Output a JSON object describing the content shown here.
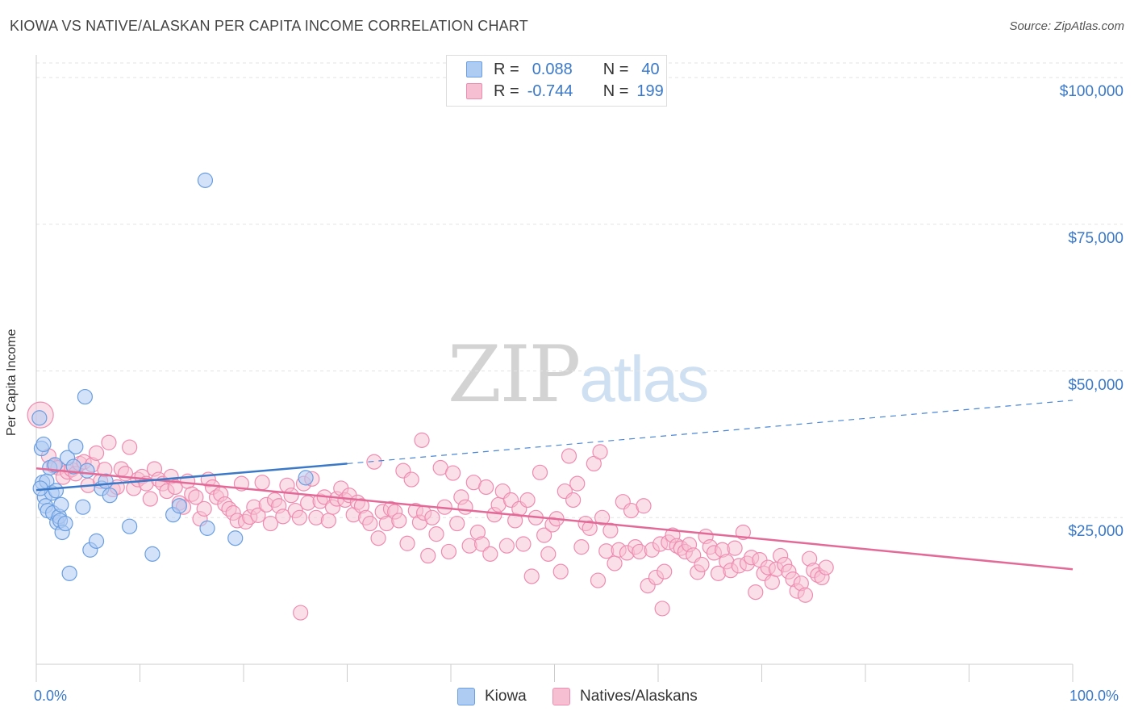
{
  "header": {
    "title": "KIOWA VS NATIVE/ALASKAN PER CAPITA INCOME CORRELATION CHART",
    "source": "Source: ZipAtlas.com"
  },
  "watermark": {
    "zip": "ZIP",
    "atlas": "atlas"
  },
  "stats": {
    "rows": [
      {
        "r_label": "R =",
        "r_value": "0.088",
        "n_label": "N =",
        "n_value": "40",
        "color": "#aecbf2",
        "border": "#6a9ee0"
      },
      {
        "r_label": "R =",
        "r_value": "-0.744",
        "n_label": "N =",
        "n_value": "199",
        "color": "#f7c0d2",
        "border": "#ee8cb0"
      }
    ]
  },
  "legend": {
    "items": [
      {
        "label": "Kiowa",
        "color": "#aecbf2",
        "border": "#6a9ee0"
      },
      {
        "label": "Natives/Alaskans",
        "color": "#f7c0d2",
        "border": "#ee8cb0"
      }
    ]
  },
  "chart_data": {
    "type": "scatter",
    "title": "KIOWA VS NATIVE/ALASKAN PER CAPITA INCOME CORRELATION CHART",
    "xlabel": "",
    "ylabel": "Per Capita Income",
    "x_tick_labels": [
      "0.0%",
      "100.0%"
    ],
    "y_tick_labels": [
      "$100,000",
      "$75,000",
      "$50,000",
      "$25,000"
    ],
    "y_ticks": [
      100000,
      75000,
      50000,
      25000
    ],
    "xlim": [
      0,
      100
    ],
    "ylim": [
      0,
      102500
    ],
    "grid": true,
    "series": [
      {
        "name": "Kiowa",
        "color": "#6a9ee0",
        "fill": "rgba(174,203,242,0.55)",
        "trend": {
          "x0": 0,
          "y0": 29700,
          "x1": 30,
          "y1": 34200,
          "dash_to_x": 100,
          "dash_to_y": 45000
        },
        "points": [
          [
            0.3,
            42000
          ],
          [
            0.5,
            36800
          ],
          [
            0.6,
            31000
          ],
          [
            0.7,
            37500
          ],
          [
            0.8,
            28500
          ],
          [
            0.9,
            27000
          ],
          [
            1.0,
            31200
          ],
          [
            1.1,
            26200
          ],
          [
            1.3,
            33500
          ],
          [
            1.5,
            29200
          ],
          [
            1.6,
            25800
          ],
          [
            1.8,
            34000
          ],
          [
            2.0,
            24200
          ],
          [
            2.2,
            25200
          ],
          [
            2.3,
            24500
          ],
          [
            2.4,
            27200
          ],
          [
            2.5,
            22500
          ],
          [
            2.8,
            24000
          ],
          [
            3.0,
            35200
          ],
          [
            3.2,
            15500
          ],
          [
            3.6,
            33700
          ],
          [
            3.8,
            37100
          ],
          [
            4.5,
            26800
          ],
          [
            4.7,
            45600
          ],
          [
            4.9,
            33000
          ],
          [
            5.2,
            19500
          ],
          [
            5.8,
            21000
          ],
          [
            6.3,
            30000
          ],
          [
            6.7,
            31200
          ],
          [
            7.1,
            28800
          ],
          [
            9.0,
            23500
          ],
          [
            11.2,
            18800
          ],
          [
            13.2,
            25500
          ],
          [
            13.8,
            27000
          ],
          [
            16.3,
            82500
          ],
          [
            16.5,
            23200
          ],
          [
            19.2,
            21500
          ],
          [
            26.0,
            31800
          ],
          [
            1.9,
            29600
          ],
          [
            0.4,
            30000
          ]
        ]
      },
      {
        "name": "Natives/Alaskans",
        "color": "#ee8cb0",
        "fill": "rgba(247,192,210,0.5)",
        "trend": {
          "x0": 0,
          "y0": 33400,
          "x1": 100,
          "y1": 16200
        },
        "points": [
          [
            0.4,
            42500
          ],
          [
            1.2,
            35500
          ],
          [
            1.7,
            33800
          ],
          [
            2.1,
            33500
          ],
          [
            2.6,
            31900
          ],
          [
            3.0,
            32800
          ],
          [
            3.4,
            33200
          ],
          [
            3.8,
            32500
          ],
          [
            4.2,
            34200
          ],
          [
            4.6,
            34500
          ],
          [
            5.0,
            30500
          ],
          [
            5.4,
            34000
          ],
          [
            5.8,
            36000
          ],
          [
            6.2,
            31200
          ],
          [
            6.6,
            33200
          ],
          [
            7.0,
            37800
          ],
          [
            7.4,
            29800
          ],
          [
            7.8,
            30200
          ],
          [
            8.2,
            33300
          ],
          [
            8.6,
            32500
          ],
          [
            9.0,
            37000
          ],
          [
            9.4,
            30000
          ],
          [
            9.8,
            31500
          ],
          [
            10.2,
            32000
          ],
          [
            10.6,
            30800
          ],
          [
            11.0,
            28200
          ],
          [
            11.4,
            33300
          ],
          [
            11.8,
            31500
          ],
          [
            12.2,
            30800
          ],
          [
            12.6,
            29500
          ],
          [
            13.0,
            32000
          ],
          [
            13.4,
            30200
          ],
          [
            13.8,
            27500
          ],
          [
            14.2,
            26800
          ],
          [
            14.6,
            31200
          ],
          [
            15.0,
            29000
          ],
          [
            15.4,
            28500
          ],
          [
            15.8,
            24800
          ],
          [
            16.2,
            26500
          ],
          [
            16.6,
            31500
          ],
          [
            17.0,
            30200
          ],
          [
            17.4,
            28500
          ],
          [
            17.8,
            29000
          ],
          [
            18.2,
            27300
          ],
          [
            18.6,
            26500
          ],
          [
            19.0,
            25800
          ],
          [
            19.4,
            24500
          ],
          [
            19.8,
            30800
          ],
          [
            20.2,
            24300
          ],
          [
            20.6,
            25100
          ],
          [
            21.0,
            26800
          ],
          [
            21.4,
            25400
          ],
          [
            21.8,
            31000
          ],
          [
            22.2,
            27200
          ],
          [
            22.6,
            24000
          ],
          [
            23.0,
            28000
          ],
          [
            23.4,
            27000
          ],
          [
            23.8,
            25200
          ],
          [
            24.2,
            30500
          ],
          [
            24.6,
            28800
          ],
          [
            25.0,
            26200
          ],
          [
            25.4,
            25000
          ],
          [
            25.8,
            30800
          ],
          [
            26.2,
            27500
          ],
          [
            26.6,
            31600
          ],
          [
            27.0,
            25000
          ],
          [
            27.4,
            27800
          ],
          [
            27.8,
            28500
          ],
          [
            28.2,
            24500
          ],
          [
            28.6,
            26800
          ],
          [
            29.0,
            28200
          ],
          [
            29.4,
            30000
          ],
          [
            29.8,
            28000
          ],
          [
            30.2,
            28800
          ],
          [
            30.6,
            25500
          ],
          [
            31.0,
            27600
          ],
          [
            31.4,
            27000
          ],
          [
            31.8,
            25000
          ],
          [
            32.2,
            24000
          ],
          [
            32.6,
            34500
          ],
          [
            33.0,
            21500
          ],
          [
            33.4,
            26000
          ],
          [
            33.8,
            24000
          ],
          [
            34.2,
            26500
          ],
          [
            34.6,
            26000
          ],
          [
            35.0,
            24500
          ],
          [
            35.4,
            33000
          ],
          [
            35.8,
            20600
          ],
          [
            36.2,
            31500
          ],
          [
            36.6,
            26200
          ],
          [
            37.0,
            24200
          ],
          [
            37.4,
            25800
          ],
          [
            37.8,
            18500
          ],
          [
            38.2,
            25000
          ],
          [
            38.6,
            22200
          ],
          [
            39.0,
            33500
          ],
          [
            39.4,
            26800
          ],
          [
            39.8,
            19200
          ],
          [
            40.2,
            32600
          ],
          [
            40.6,
            24000
          ],
          [
            41.0,
            28500
          ],
          [
            41.4,
            26800
          ],
          [
            41.8,
            20200
          ],
          [
            42.2,
            31000
          ],
          [
            42.6,
            22500
          ],
          [
            43.0,
            20500
          ],
          [
            43.4,
            30200
          ],
          [
            43.8,
            18800
          ],
          [
            44.2,
            25500
          ],
          [
            44.6,
            27200
          ],
          [
            45.0,
            29500
          ],
          [
            45.4,
            20200
          ],
          [
            45.8,
            28000
          ],
          [
            46.2,
            24500
          ],
          [
            46.6,
            26500
          ],
          [
            47.0,
            20500
          ],
          [
            47.4,
            28000
          ],
          [
            47.8,
            15000
          ],
          [
            48.2,
            25000
          ],
          [
            48.6,
            32700
          ],
          [
            49.0,
            22000
          ],
          [
            49.4,
            18800
          ],
          [
            49.8,
            23800
          ],
          [
            50.2,
            24800
          ],
          [
            50.6,
            15800
          ],
          [
            51.0,
            29500
          ],
          [
            51.4,
            35500
          ],
          [
            51.8,
            28000
          ],
          [
            52.2,
            30800
          ],
          [
            52.6,
            20000
          ],
          [
            53.0,
            24000
          ],
          [
            53.4,
            23200
          ],
          [
            53.8,
            34200
          ],
          [
            54.2,
            14300
          ],
          [
            54.6,
            25000
          ],
          [
            55.0,
            19300
          ],
          [
            55.4,
            22800
          ],
          [
            55.8,
            17200
          ],
          [
            56.2,
            19500
          ],
          [
            56.6,
            27700
          ],
          [
            57.0,
            19000
          ],
          [
            57.4,
            26200
          ],
          [
            57.8,
            20000
          ],
          [
            58.2,
            19200
          ],
          [
            58.6,
            27000
          ],
          [
            59.0,
            13400
          ],
          [
            59.4,
            19500
          ],
          [
            59.8,
            14800
          ],
          [
            60.2,
            20500
          ],
          [
            60.6,
            15800
          ],
          [
            61.0,
            20800
          ],
          [
            61.4,
            22000
          ],
          [
            61.8,
            20200
          ],
          [
            62.2,
            19800
          ],
          [
            62.6,
            19200
          ],
          [
            63.0,
            20400
          ],
          [
            63.4,
            18600
          ],
          [
            63.8,
            15700
          ],
          [
            64.2,
            17000
          ],
          [
            64.6,
            21800
          ],
          [
            65.0,
            20000
          ],
          [
            65.4,
            19000
          ],
          [
            65.8,
            15500
          ],
          [
            66.2,
            19500
          ],
          [
            66.6,
            17500
          ],
          [
            67.0,
            16000
          ],
          [
            67.4,
            19800
          ],
          [
            67.8,
            16800
          ],
          [
            68.2,
            22500
          ],
          [
            68.6,
            17200
          ],
          [
            69.0,
            18200
          ],
          [
            69.4,
            12300
          ],
          [
            69.8,
            17800
          ],
          [
            70.2,
            15500
          ],
          [
            70.6,
            16500
          ],
          [
            71.0,
            14000
          ],
          [
            71.4,
            16200
          ],
          [
            71.8,
            18500
          ],
          [
            72.2,
            17000
          ],
          [
            72.6,
            15800
          ],
          [
            73.0,
            14500
          ],
          [
            73.4,
            12500
          ],
          [
            73.8,
            13800
          ],
          [
            74.2,
            11800
          ],
          [
            74.6,
            18000
          ],
          [
            75.0,
            16000
          ],
          [
            75.4,
            15200
          ],
          [
            75.8,
            14800
          ],
          [
            76.2,
            16500
          ],
          [
            54.4,
            36200
          ],
          [
            60.4,
            9500
          ],
          [
            25.5,
            8800
          ],
          [
            37.2,
            38200
          ]
        ]
      }
    ]
  }
}
